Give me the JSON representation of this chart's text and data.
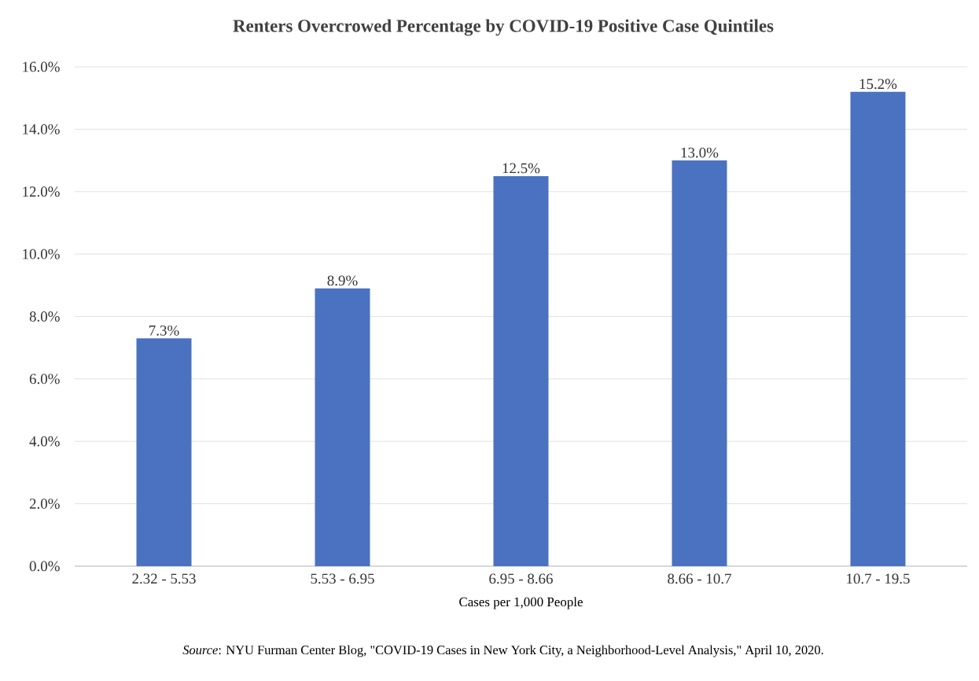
{
  "chart_data": {
    "type": "bar",
    "title": "Renters Overcrowed Percentage by COVID-19 Positive Case Quintiles",
    "categories": [
      "2.32 - 5.53",
      "5.53 - 6.95",
      "6.95 - 8.66",
      "8.66 - 10.7",
      "10.7 - 19.5"
    ],
    "values": [
      7.3,
      8.9,
      12.5,
      13.0,
      15.2
    ],
    "value_labels": [
      "7.3%",
      "8.9%",
      "12.5%",
      "13.0%",
      "15.2%"
    ],
    "color": "#4a72c0",
    "xlabel": "Cases per 1,000 People",
    "ylim": [
      0,
      16
    ],
    "yticks": [
      {
        "value": 0,
        "label": "0.0%"
      },
      {
        "value": 2,
        "label": "2.0%"
      },
      {
        "value": 4,
        "label": "4.0%"
      },
      {
        "value": 6,
        "label": "6.0%"
      },
      {
        "value": 8,
        "label": "8.0%"
      },
      {
        "value": 10,
        "label": "10.0%"
      },
      {
        "value": 12,
        "label": "12.0%"
      },
      {
        "value": 14,
        "label": "14.0%"
      },
      {
        "value": 16,
        "label": "16.0%"
      }
    ],
    "grid": "y",
    "annotations": [
      "*Source*: NYU Furman Center Blog, \"COVID-19 Cases in New York City, a Neighborhood-Level Analysis,\" April 10, 2020."
    ]
  }
}
